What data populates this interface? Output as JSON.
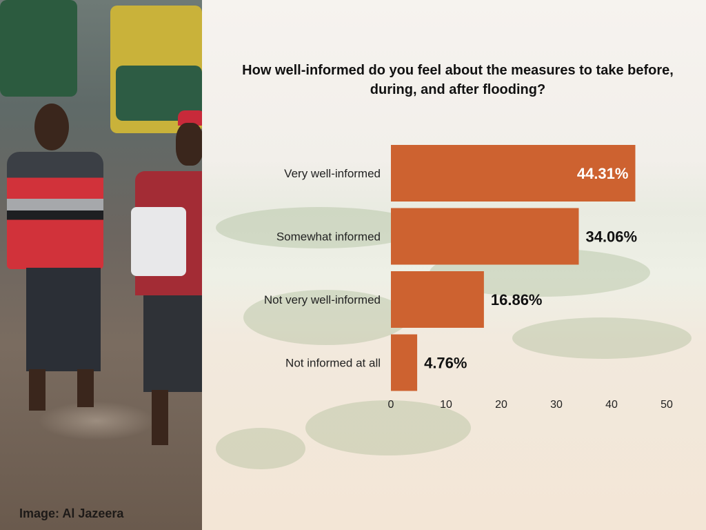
{
  "chart_data": {
    "type": "bar",
    "orientation": "horizontal",
    "title": "How well-informed do you feel about the measures to take before, during, and after flooding?",
    "categories": [
      "Very well-informed",
      "Somewhat informed",
      "Not very well-informed",
      "Not informed at all"
    ],
    "values": [
      44.31,
      34.06,
      16.86,
      4.76
    ],
    "value_labels": [
      "44.31%",
      "34.06%",
      "16.86%",
      "4.76%"
    ],
    "xlim": [
      0,
      50
    ],
    "xticks": [
      "0",
      "10",
      "20",
      "30",
      "40",
      "50"
    ],
    "bar_color": "#cd6230",
    "grid": false,
    "legend": "none"
  },
  "image_credit": "Image: Al Jazeera"
}
